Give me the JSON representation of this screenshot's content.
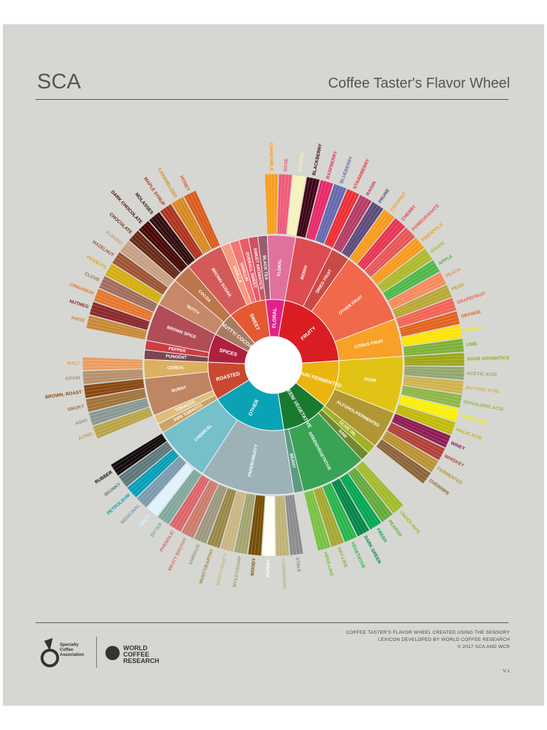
{
  "header": {
    "title": "SCA",
    "subtitle": "Coffee Taster's Flavor Wheel"
  },
  "wheel": {
    "categories": [
      {
        "name": "FLORAL",
        "color": "#e0218a",
        "children": [
          {
            "name": "BLACK TEA",
            "color": "#975e6d"
          },
          {
            "name": "FLORAL",
            "color": "#e0719c",
            "children": [
              {
                "name": "CHAMOMILE",
                "color": "#f99e1c"
              },
              {
                "name": "ROSE",
                "color": "#ef5a78"
              },
              {
                "name": "JASMINE",
                "color": "#f7f1bd"
              }
            ]
          }
        ]
      },
      {
        "name": "FRUITY",
        "color": "#da1d23",
        "children": [
          {
            "name": "BERRY",
            "color": "#dd4c51",
            "children": [
              {
                "name": "BLACKBERRY",
                "color": "#3e0317"
              },
              {
                "name": "RASPBERRY",
                "color": "#e62969"
              },
              {
                "name": "BLUEBERRY",
                "color": "#6569b0"
              },
              {
                "name": "STRAWBERRY",
                "color": "#ef2d36"
              }
            ]
          },
          {
            "name": "DRIED FRUIT",
            "color": "#c94a44",
            "children": [
              {
                "name": "RAISIN",
                "color": "#b53b65"
              },
              {
                "name": "PRUNE",
                "color": "#5d4b7a"
              }
            ]
          },
          {
            "name": "OTHER FRUIT",
            "color": "#f2684b",
            "children": [
              {
                "name": "COCONUT",
                "color": "#f89a1c"
              },
              {
                "name": "CHERRY",
                "color": "#e73451"
              },
              {
                "name": "POMEGRANATE",
                "color": "#e65656"
              },
              {
                "name": "PINEAPPLE",
                "color": "#f89a1c"
              },
              {
                "name": "GRAPE",
                "color": "#aeb92c"
              },
              {
                "name": "APPLE",
                "color": "#4eb849"
              },
              {
                "name": "PEACH",
                "color": "#f68a5c"
              },
              {
                "name": "PEAR",
                "color": "#baa635"
              }
            ]
          },
          {
            "name": "CITRUS FRUIT",
            "color": "#f7a128",
            "children": [
              {
                "name": "GRAPEFRUIT",
                "color": "#f26355"
              },
              {
                "name": "ORANGE",
                "color": "#e2631e"
              },
              {
                "name": "LEMON",
                "color": "#fde404"
              },
              {
                "name": "LIME",
                "color": "#7eb138"
              }
            ]
          }
        ]
      },
      {
        "name": "SOUR/ FERMENTED",
        "color": "#ebb40f",
        "children": [
          {
            "name": "SOUR",
            "color": "#e1c315",
            "children": [
              {
                "name": "SOUR AROMATICS",
                "color": "#9ea718"
              },
              {
                "name": "ACETIC ACID",
                "color": "#94a76f"
              },
              {
                "name": "BUTYRIC ACID",
                "color": "#d0b24f"
              },
              {
                "name": "ISOVALERIC ACID",
                "color": "#8eb646"
              },
              {
                "name": "CITRIC ACID",
                "color": "#faef07"
              },
              {
                "name": "MALIC ACID",
                "color": "#c1ba07"
              }
            ]
          },
          {
            "name": "ALCOHOL/FERMENTED",
            "color": "#b09733",
            "children": [
              {
                "name": "WINEY",
                "color": "#8f1c53"
              },
              {
                "name": "WHISKEY",
                "color": "#b34039"
              },
              {
                "name": "FERMENTED",
                "color": "#ba9232"
              },
              {
                "name": "OVERRIPE",
                "color": "#8b6439"
              }
            ]
          }
        ]
      },
      {
        "name": "GREEN/ VEGETATIVE",
        "color": "#187a2f",
        "children": [
          {
            "name": "OLIVE OIL",
            "color": "#a2b029"
          },
          {
            "name": "RAW",
            "color": "#718933"
          },
          {
            "name": "GREEN/VEGETATIVE",
            "color": "#3aa255",
            "children": [
              {
                "name": "UNDER-RIPE",
                "color": "#a2bb2b"
              },
              {
                "name": "PEAPOD",
                "color": "#62aa3c"
              },
              {
                "name": "FRESH",
                "color": "#03a653"
              },
              {
                "name": "DARK GREEN",
                "color": "#038549"
              },
              {
                "name": "VEGETATIVE",
                "color": "#28b44b"
              },
              {
                "name": "HAY-LIKE",
                "color": "#a3a830"
              },
              {
                "name": "HERB-LIKE",
                "color": "#7ac141"
              }
            ]
          },
          {
            "name": "BEANY",
            "color": "#5e9a80"
          }
        ]
      },
      {
        "name": "OTHER",
        "color": "#0aa3b5",
        "children": [
          {
            "name": "PAPERY/MUSTY",
            "color": "#9db2b7",
            "children": [
              {
                "name": "STALE",
                "color": "#8b8c90"
              },
              {
                "name": "CARDBOARD",
                "color": "#beb276"
              },
              {
                "name": "PAPERY",
                "color": "#fefef4"
              },
              {
                "name": "WOODY",
                "color": "#744e03"
              },
              {
                "name": "MOLDY/DAMP",
                "color": "#a3a36f"
              },
              {
                "name": "MUSTY/DUSTY",
                "color": "#c9b583"
              },
              {
                "name": "MUSTY/EARTHY",
                "color": "#978847"
              },
              {
                "name": "ANIMALIC",
                "color": "#9d977f"
              },
              {
                "name": "MEATY BROTHY",
                "color": "#cc7b6a"
              },
              {
                "name": "PHENOLIC",
                "color": "#db646a"
              }
            ]
          },
          {
            "name": "CHEMICAL",
            "color": "#76c0cb",
            "children": [
              {
                "name": "BITTER",
                "color": "#80a89d"
              },
              {
                "name": "SALTY",
                "color": "#def2fd"
              },
              {
                "name": "MEDICINAL",
                "color": "#7a9bae"
              },
              {
                "name": "PETROLEUM",
                "color": "#039fb8"
              },
              {
                "name": "SKUNKY",
                "color": "#5e777b"
              },
              {
                "name": "RUBBER",
                "color": "#120c0c"
              }
            ]
          }
        ]
      },
      {
        "name": "ROASTED",
        "color": "#c94930",
        "children": [
          {
            "name": "PIPE TOBACCO",
            "color": "#caa465"
          },
          {
            "name": "TOBACCO",
            "color": "#dfbd7e"
          },
          {
            "name": "BURNT",
            "color": "#be8663",
            "children": [
              {
                "name": "ACRID",
                "color": "#b9a449"
              },
              {
                "name": "ASHY",
                "color": "#899893"
              },
              {
                "name": "SMOKY",
                "color": "#a1743b"
              },
              {
                "name": "BROWN, ROAST",
                "color": "#894810"
              }
            ]
          },
          {
            "name": "CEREAL",
            "color": "#ddaf61",
            "children": [
              {
                "name": "GRAIN",
                "color": "#b7906f"
              },
              {
                "name": "MALT",
                "color": "#eb9d5f"
              }
            ]
          }
        ]
      },
      {
        "name": "SPICES",
        "color": "#ad213e",
        "children": [
          {
            "name": "PUNGENT",
            "color": "#794752"
          },
          {
            "name": "PEPPER",
            "color": "#cc3d41"
          },
          {
            "name": "BROWN SPICE",
            "color": "#b14d57",
            "children": [
              {
                "name": "ANISE",
                "color": "#c78936"
              },
              {
                "name": "NUTMEG",
                "color": "#8c292c"
              },
              {
                "name": "CINNAMON",
                "color": "#e5762e"
              },
              {
                "name": "CLOVE",
                "color": "#a16c5a"
              }
            ]
          }
        ]
      },
      {
        "name": "NUTTY/ COCOA",
        "color": "#a87b64",
        "children": [
          {
            "name": "NUTTY",
            "color": "#c78869",
            "children": [
              {
                "name": "PEANUTS",
                "color": "#d4ad12"
              },
              {
                "name": "HAZELNUT",
                "color": "#9d5433"
              },
              {
                "name": "ALMOND",
                "color": "#c89f83"
              }
            ]
          },
          {
            "name": "COCOA",
            "color": "#bb764c",
            "children": [
              {
                "name": "CHOCOLATE",
                "color": "#692a19"
              },
              {
                "name": "DARK CHOCOLATE",
                "color": "#470604"
              }
            ]
          }
        ]
      },
      {
        "name": "SWEET",
        "color": "#e65832",
        "children": [
          {
            "name": "BROWN SUGAR",
            "color": "#d45a59",
            "children": [
              {
                "name": "MOLASSES",
                "color": "#310d0f"
              },
              {
                "name": "MAPLE SYRUP",
                "color": "#ae341f"
              },
              {
                "name": "CARAMELIZED",
                "color": "#d78823"
              },
              {
                "name": "HONEY",
                "color": "#da5c1f"
              }
            ]
          },
          {
            "name": "VANILLA",
            "color": "#f89a80"
          },
          {
            "name": "VANILLIN",
            "color": "#f37674"
          },
          {
            "name": "OVERALL SWEET",
            "color": "#e75b68"
          },
          {
            "name": "SWEET AROMATICS",
            "color": "#d0545f"
          }
        ]
      }
    ]
  },
  "footer": {
    "credit_1": "COFFEE TASTER'S FLAVOR WHEEL CREATED USING THE SENSORY",
    "credit_2": "LEXICON DEVELOPED BY WORLD COFFEE RESEARCH",
    "copyright": "© 2017 SCA AND WCR",
    "version": "V.1",
    "logo_sca": "Specialty Coffee Association",
    "logo_wcr": "WORLD COFFEE RESEARCH"
  }
}
